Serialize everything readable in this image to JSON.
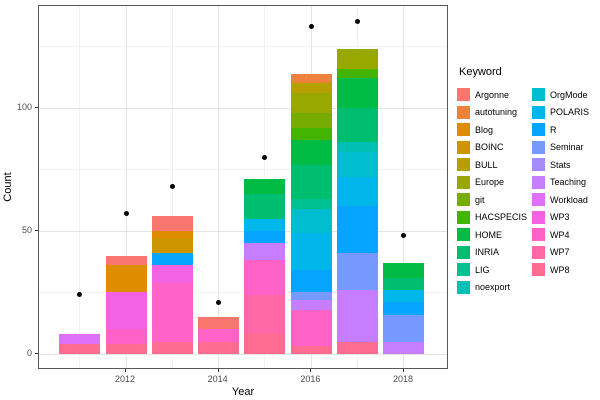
{
  "chart_data": {
    "type": "bar",
    "stacked": true,
    "title": "",
    "xlabel": "Year",
    "ylabel": "Count",
    "legend_title": "Keyword",
    "legend_position": "right",
    "grid": true,
    "x_major_ticks": [
      2012,
      2014,
      2016,
      2018
    ],
    "x_minor_gridlines": [
      2011,
      2013,
      2015,
      2017
    ],
    "y_major_ticks": [
      0,
      50,
      100
    ],
    "y_minor_gridlines": [
      25,
      75,
      125
    ],
    "xlim": [
      2010.1,
      2019.0
    ],
    "ylim": [
      0,
      141.5
    ],
    "keywords": [
      "Argonne",
      "autotuning",
      "Blog",
      "BOINC",
      "BULL",
      "Europe",
      "git",
      "HACSPECIS",
      "HOME",
      "INRIA",
      "LIG",
      "noexport",
      "OrgMode",
      "POLARIS",
      "R",
      "Seminar",
      "Stats",
      "Teaching",
      "Workload",
      "WP3",
      "WP4",
      "WP7",
      "WP8"
    ],
    "colors": {
      "Argonne": "#F8766D",
      "autotuning": "#EC823C",
      "Blog": "#DE8C00",
      "BOINC": "#CD9600",
      "BULL": "#B5A000",
      "Europe": "#99A800",
      "git": "#77AD00",
      "HACSPECIS": "#43B500",
      "HOME": "#00BB44",
      "INRIA": "#00BE70",
      "LIG": "#00C192",
      "noexport": "#00C0B4",
      "OrgMode": "#00BDD0",
      "POLARIS": "#00B6EB",
      "R": "#06A5FF",
      "Seminar": "#7699FF",
      "Stats": "#A48CFF",
      "Teaching": "#C67DFF",
      "Workload": "#DF70F8",
      "WP3": "#F263E3",
      "WP4": "#FF62C6",
      "WP7": "#FF67A5",
      "WP8": "#FF6C91"
    },
    "segment_order": "top-to-bottom",
    "bars": [
      {
        "year": 2011,
        "total": 8,
        "segments": [
          {
            "keyword": "Workload",
            "value": 4
          },
          {
            "keyword": "WP8",
            "value": 4
          }
        ]
      },
      {
        "year": 2012,
        "total": 40,
        "segments": [
          {
            "keyword": "Argonne",
            "value": 4
          },
          {
            "keyword": "Blog",
            "value": 11
          },
          {
            "keyword": "WP3",
            "value": 15
          },
          {
            "keyword": "WP4",
            "value": 6
          },
          {
            "keyword": "WP8",
            "value": 4
          }
        ]
      },
      {
        "year": 2013,
        "total": 56,
        "segments": [
          {
            "keyword": "Argonne",
            "value": 6
          },
          {
            "keyword": "Blog",
            "value": 3
          },
          {
            "keyword": "BOINC",
            "value": 6
          },
          {
            "keyword": "R",
            "value": 5
          },
          {
            "keyword": "WP3",
            "value": 7
          },
          {
            "keyword": "WP4",
            "value": 24
          },
          {
            "keyword": "WP8",
            "value": 5
          }
        ]
      },
      {
        "year": 2014,
        "total": 15,
        "segments": [
          {
            "keyword": "Argonne",
            "value": 5
          },
          {
            "keyword": "WP4",
            "value": 5
          },
          {
            "keyword": "WP8",
            "value": 5
          }
        ]
      },
      {
        "year": 2015,
        "total": 71,
        "segments": [
          {
            "keyword": "HOME",
            "value": 6
          },
          {
            "keyword": "INRIA",
            "value": 10
          },
          {
            "keyword": "POLARIS",
            "value": 5
          },
          {
            "keyword": "R",
            "value": 5
          },
          {
            "keyword": "Teaching",
            "value": 7
          },
          {
            "keyword": "WP4",
            "value": 14
          },
          {
            "keyword": "WP7",
            "value": 16
          },
          {
            "keyword": "WP8",
            "value": 8
          }
        ]
      },
      {
        "year": 2016,
        "total": 114,
        "segments": [
          {
            "keyword": "autotuning",
            "value": 4
          },
          {
            "keyword": "BULL",
            "value": 4
          },
          {
            "keyword": "Europe",
            "value": 8
          },
          {
            "keyword": "git",
            "value": 6
          },
          {
            "keyword": "HACSPECIS",
            "value": 5
          },
          {
            "keyword": "HOME",
            "value": 10
          },
          {
            "keyword": "INRIA",
            "value": 14
          },
          {
            "keyword": "LIG",
            "value": 4
          },
          {
            "keyword": "OrgMode",
            "value": 10
          },
          {
            "keyword": "POLARIS",
            "value": 15
          },
          {
            "keyword": "R",
            "value": 9
          },
          {
            "keyword": "Seminar",
            "value": 3
          },
          {
            "keyword": "Teaching",
            "value": 4
          },
          {
            "keyword": "WP4",
            "value": 15
          },
          {
            "keyword": "WP8",
            "value": 3
          }
        ]
      },
      {
        "year": 2017,
        "total": 124,
        "segments": [
          {
            "keyword": "Europe",
            "value": 8
          },
          {
            "keyword": "HACSPECIS",
            "value": 4
          },
          {
            "keyword": "HOME",
            "value": 12
          },
          {
            "keyword": "INRIA",
            "value": 14
          },
          {
            "keyword": "noexport",
            "value": 4
          },
          {
            "keyword": "OrgMode",
            "value": 10
          },
          {
            "keyword": "POLARIS",
            "value": 12
          },
          {
            "keyword": "R",
            "value": 19
          },
          {
            "keyword": "Seminar",
            "value": 15
          },
          {
            "keyword": "Teaching",
            "value": 21
          },
          {
            "keyword": "WP8",
            "value": 5
          }
        ]
      },
      {
        "year": 2018,
        "total": 37,
        "segments": [
          {
            "keyword": "HOME",
            "value": 6
          },
          {
            "keyword": "INRIA",
            "value": 5
          },
          {
            "keyword": "POLARIS",
            "value": 5
          },
          {
            "keyword": "R",
            "value": 5
          },
          {
            "keyword": "Seminar",
            "value": 11
          },
          {
            "keyword": "Teaching",
            "value": 5
          }
        ]
      }
    ],
    "points": [
      {
        "year": 2011,
        "count": 24
      },
      {
        "year": 2012,
        "count": 57
      },
      {
        "year": 2013,
        "count": 68
      },
      {
        "year": 2014,
        "count": 21
      },
      {
        "year": 2015,
        "count": 80
      },
      {
        "year": 2016,
        "count": 133
      },
      {
        "year": 2017,
        "count": 135
      },
      {
        "year": 2018,
        "count": 48
      }
    ]
  }
}
